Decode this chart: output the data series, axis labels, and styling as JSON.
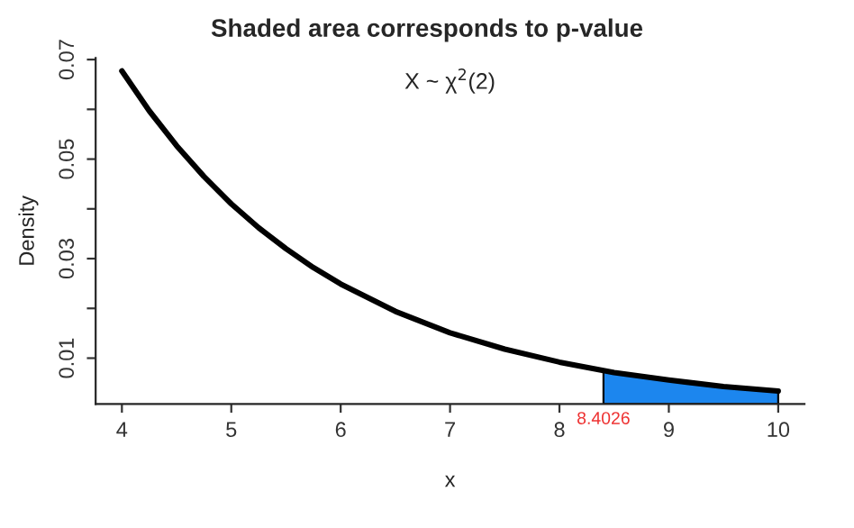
{
  "chart_data": {
    "type": "line",
    "title": "Shaded area corresponds to p-value",
    "subtitle": "X ~ χ$^{2}$(2)",
    "xlabel": "x",
    "ylabel": "Density",
    "series": [
      {
        "color": "#000000",
        "x": [
          4,
          4.25,
          4.5,
          4.75,
          5,
          5.25,
          5.5,
          5.75,
          6,
          6.5,
          7,
          7.5,
          8,
          8.5,
          9,
          9.5,
          10
        ],
        "values": [
          0.0677,
          0.0597,
          0.0527,
          0.0465,
          0.041,
          0.0362,
          0.032,
          0.0282,
          0.0249,
          0.0194,
          0.0151,
          0.0118,
          0.0092,
          0.0071,
          0.0056,
          0.0043,
          0.0034
        ]
      },
      {
        "type": "area",
        "color": "#1c86ee",
        "x": [
          8.4026,
          9,
          9.5,
          10
        ],
        "values": [
          0.0075,
          0.0056,
          0.0043,
          0.0034
        ]
      }
    ],
    "annotations": [
      {
        "text": "8.4026",
        "x": 8.4026,
        "y": 0.0008
      }
    ],
    "xlim": [
      3.76,
      10.24
    ],
    "ylim": [
      0.0008,
      0.0703
    ],
    "xticks": [
      4,
      5,
      6,
      7,
      8,
      9,
      10
    ],
    "yticks": [
      {
        "value": 0.01,
        "label": "0.01"
      },
      {
        "value": 0.02,
        "label": null
      },
      {
        "value": 0.03,
        "label": "0.03"
      },
      {
        "value": 0.04,
        "label": null
      },
      {
        "value": 0.05,
        "label": "0.05"
      },
      {
        "value": 0.06,
        "label": null
      },
      {
        "value": 0.07,
        "label": "0.07"
      }
    ],
    "grid": false,
    "legend": false
  }
}
